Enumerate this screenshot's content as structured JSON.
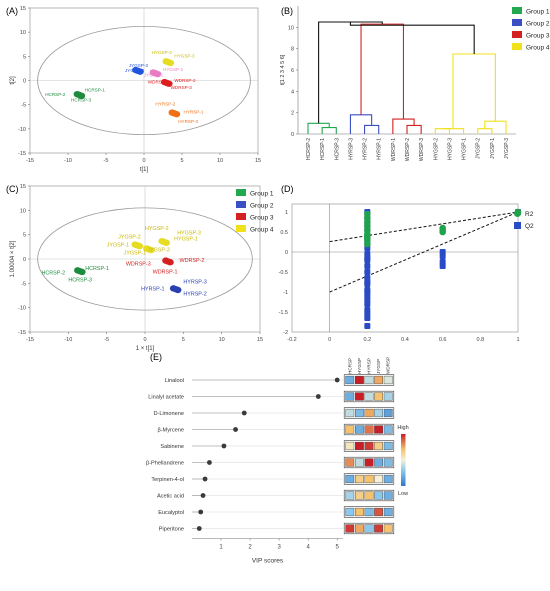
{
  "panels": {
    "A": {
      "label": "(A)",
      "xlabel": "t[1]",
      "ylabel": "t[2]"
    },
    "B": {
      "label": "(B)",
      "ylabel": "t[1 2 3 4 5 6]"
    },
    "C": {
      "label": "(C)",
      "xlabel": "1 × t[1]",
      "ylabel": "1.00004 × t[2]"
    },
    "D": {
      "label": "(D)"
    },
    "E": {
      "label": "(E)",
      "xlabel": "VIP scores"
    }
  },
  "legend_groups": [
    {
      "name": "Group 1",
      "color": "#22a94f"
    },
    {
      "name": "Group 2",
      "color": "#3b4fc4"
    },
    {
      "name": "Group 3",
      "color": "#d42020"
    },
    {
      "name": "Group 4",
      "color": "#f0e11b"
    }
  ],
  "heat_legend": {
    "high": "High",
    "low": "Low"
  },
  "chart_data": [
    {
      "id": "A",
      "type": "scatter",
      "xlabel": "t[1]",
      "ylabel": "t[2]",
      "xlim": [
        -15,
        15
      ],
      "ylim": [
        -15,
        15
      ],
      "xticks": [
        -15,
        -10,
        -5,
        0,
        5,
        10,
        15
      ],
      "yticks": [
        -15,
        -10,
        -5,
        0,
        5,
        10,
        15
      ],
      "ellipse": {
        "rx": 14,
        "ry": 11.2
      },
      "clusters": [
        {
          "name": "HCRSP",
          "color": "#1e8c3e",
          "x": -8.5,
          "y": -3.0
        },
        {
          "name": "JYGSP",
          "color": "#2255dd",
          "x": -0.8,
          "y": 2.0
        },
        {
          "name": "HYGSP",
          "color": "#e87cc4",
          "x": 1.5,
          "y": 1.5
        },
        {
          "name": "HYGSP",
          "color": "#e6dc22",
          "x": 3.2,
          "y": 3.8
        },
        {
          "name": "WDRSP",
          "color": "#e01d1d",
          "x": 3.0,
          "y": -0.5
        },
        {
          "name": "HYRSP",
          "color": "#f07018",
          "x": 4.0,
          "y": -6.8
        }
      ],
      "point_labels": [
        {
          "text": "HCRSP-2",
          "x": -13,
          "y": -3.2,
          "color": "#1e8c3e"
        },
        {
          "text": "HCRSP-1",
          "x": -7.8,
          "y": -2.3,
          "color": "#1e8c3e"
        },
        {
          "text": "HCRSP-3",
          "x": -9.6,
          "y": -4.3,
          "color": "#1e8c3e"
        },
        {
          "text": "JYGSP-3",
          "x": -2.0,
          "y": 2.8,
          "color": "#2255dd"
        },
        {
          "text": "JYGSP-2",
          "x": -2.5,
          "y": 1.8,
          "color": "#2255dd"
        },
        {
          "text": "JYGSP-1",
          "x": 0.0,
          "y": 0.8,
          "color": "#e87cc4"
        },
        {
          "text": "HYGSP-1",
          "x": 2.5,
          "y": 2.0,
          "color": "#e87cc4"
        },
        {
          "text": "HYGSP-2",
          "x": 1.0,
          "y": 5.5,
          "color": "#c9b800"
        },
        {
          "text": "HYGSP-3",
          "x": 4.0,
          "y": 4.8,
          "color": "#c9b800"
        },
        {
          "text": "WDRSP-1",
          "x": 0.5,
          "y": -0.6,
          "color": "#e01d1d"
        },
        {
          "text": "WDRSP-2",
          "x": 4.0,
          "y": -0.3,
          "color": "#e01d1d"
        },
        {
          "text": "WDRSP-3",
          "x": 3.5,
          "y": -1.8,
          "color": "#e01d1d"
        },
        {
          "text": "HYRSP-2",
          "x": 1.5,
          "y": -5.2,
          "color": "#f07018"
        },
        {
          "text": "HYRSP-1",
          "x": 5.2,
          "y": -6.8,
          "color": "#f07018"
        },
        {
          "text": "HYRSP-3",
          "x": 4.5,
          "y": -8.8,
          "color": "#f07018"
        }
      ]
    },
    {
      "id": "B",
      "type": "dendrogram",
      "ylabel": "t[1 2 3 4 5 6]",
      "ylim": [
        0,
        12
      ],
      "yticks": [
        0,
        2,
        4,
        6,
        8,
        10
      ],
      "leaves": [
        "HCRSP-2",
        "HCRSP-1",
        "HCRSP-3",
        "HYRSP-3",
        "HYRSP-2",
        "HYRSP-1",
        "WDRSP-1",
        "WDRSP-2",
        "WDRSP-3",
        "HYGSP-2",
        "HYGSP-3",
        "HYGSP-1",
        "JYGSP-2",
        "JYGSP-1",
        "JYGSP-3"
      ]
    },
    {
      "id": "C",
      "type": "scatter",
      "xlabel": "1 × t[1]",
      "ylabel": "1.00004 × t[2]",
      "xlim": [
        -15,
        15
      ],
      "ylim": [
        -15,
        15
      ],
      "xticks": [
        -15,
        -10,
        -5,
        0,
        5,
        10,
        15
      ],
      "yticks": [
        -15,
        -10,
        -5,
        0,
        5,
        10,
        15
      ],
      "ellipse": {
        "rx": 14,
        "ry": 10.5
      },
      "clusters": [
        {
          "name": "HCRSP",
          "color": "#1e8c3e",
          "x": -8.5,
          "y": -2.5
        },
        {
          "name": "JYGSP",
          "color": "#e6dc22",
          "x": -1.0,
          "y": 2.8
        },
        {
          "name": "JYGSP",
          "color": "#e6dc22",
          "x": 0.5,
          "y": 2.0
        },
        {
          "name": "HYGSP",
          "color": "#e6dc22",
          "x": 2.5,
          "y": 3.5
        },
        {
          "name": "WDRSP",
          "color": "#d42020",
          "x": 3.0,
          "y": -0.5
        },
        {
          "name": "HYRSP",
          "color": "#2a3fb0",
          "x": 4.0,
          "y": -6.2
        }
      ],
      "point_labels": [
        {
          "text": "HCRSP-2",
          "x": -13.5,
          "y": -3.2,
          "color": "#1e8c3e"
        },
        {
          "text": "HCRSP-1",
          "x": -7.8,
          "y": -2.3,
          "color": "#1e8c3e"
        },
        {
          "text": "HCRSP-3",
          "x": -10.0,
          "y": -4.6,
          "color": "#1e8c3e"
        },
        {
          "text": "HYGSP-2",
          "x": 0.0,
          "y": 6.0,
          "color": "#c9b800"
        },
        {
          "text": "HYGSP-3",
          "x": 4.2,
          "y": 5.0,
          "color": "#c9b800"
        },
        {
          "text": "HYGSP-1",
          "x": 3.8,
          "y": 3.8,
          "color": "#c9b800"
        },
        {
          "text": "JYGSP-2",
          "x": -3.5,
          "y": 4.2,
          "color": "#c9b800"
        },
        {
          "text": "JYGSP-1",
          "x": -5.0,
          "y": 2.6,
          "color": "#c9b800"
        },
        {
          "text": "JYGSP-3",
          "x": 0.3,
          "y": 1.5,
          "color": "#c9b800"
        },
        {
          "text": "JYGSP-1",
          "x": -2.8,
          "y": 0.9,
          "color": "#c9b800"
        },
        {
          "text": "WDRSP-3",
          "x": -2.5,
          "y": -1.3,
          "color": "#d42020"
        },
        {
          "text": "WDRSP-2",
          "x": 4.5,
          "y": -0.6,
          "color": "#d42020"
        },
        {
          "text": "WDRSP-1",
          "x": 1.0,
          "y": -3.0,
          "color": "#d42020"
        },
        {
          "text": "HYRSP-3",
          "x": 5.0,
          "y": -5.0,
          "color": "#2a3fb0"
        },
        {
          "text": "HYRSP-1",
          "x": -0.5,
          "y": -6.5,
          "color": "#2a3fb0"
        },
        {
          "text": "HYRSP-2",
          "x": 5.0,
          "y": -7.5,
          "color": "#2a3fb0"
        }
      ]
    },
    {
      "id": "D",
      "type": "scatter",
      "xlim": [
        -0.2,
        1.0
      ],
      "ylim": [
        -2.0,
        1.2
      ],
      "xticks": [
        -0.2,
        0,
        0.2,
        0.4,
        0.6,
        0.8,
        1
      ],
      "yticks": [
        -2,
        -1.5,
        -1,
        -0.5,
        0,
        0.5,
        1
      ],
      "series": [
        {
          "name": "R2",
          "color": "#1fa34a",
          "shape": "circle",
          "x": [
            0.2,
            0.2,
            0.2,
            0.2,
            0.2,
            0.2,
            0.2,
            0.2,
            0.2,
            0.2,
            0.6,
            0.6,
            0.6,
            1.0
          ],
          "y": [
            0.95,
            0.85,
            0.75,
            0.65,
            0.55,
            0.45,
            0.35,
            0.3,
            0.2,
            0.4,
            0.6,
            0.55,
            0.5,
            1.0
          ],
          "trend": {
            "x": [
              0,
              1
            ],
            "y": [
              0.26,
              1.0
            ]
          }
        },
        {
          "name": "Q2",
          "color": "#2a4bc6",
          "shape": "square",
          "x": [
            0.2,
            0.2,
            0.2,
            0.2,
            0.2,
            0.2,
            0.2,
            0.2,
            0.2,
            0.2,
            0.2,
            0.2,
            0.2,
            0.2,
            0.2,
            0.2,
            0.2,
            0.2,
            0.2,
            0.2,
            0.2,
            0.2,
            0.2,
            0.2,
            0.6,
            0.6,
            0.6,
            0.6,
            1.0
          ],
          "y": [
            1.0,
            0.85,
            0.7,
            0.55,
            0.4,
            0.25,
            0.1,
            -0.05,
            -0.2,
            -0.35,
            -0.5,
            -0.65,
            -0.8,
            -0.95,
            -1.1,
            -1.2,
            -1.3,
            -1.45,
            -1.55,
            -1.65,
            -1.85,
            -0.15,
            -0.75,
            -1.0,
            0.0,
            -0.1,
            -0.25,
            -0.35,
            1.0
          ],
          "trend": {
            "x": [
              0,
              1
            ],
            "y": [
              -1.0,
              1.0
            ]
          }
        }
      ]
    },
    {
      "id": "E",
      "type": "scatter",
      "xlabel": "VIP scores",
      "xlim": [
        0,
        5.2
      ],
      "xticks": [
        1,
        2,
        3,
        4,
        5
      ],
      "categories": [
        "Linalool",
        "Linalyl acetate",
        "D-Limonene",
        "β-Myrcene",
        "Sabinene",
        "β-Phellandrene",
        "Terpinen-4-ol",
        "Acetic acid",
        "Eucalyptol",
        "Piperitone"
      ],
      "values": [
        5.0,
        4.35,
        1.8,
        1.5,
        1.1,
        0.6,
        0.45,
        0.38,
        0.3,
        0.25
      ],
      "heatmap_columns": [
        "HCRSP",
        "HYGSP",
        "HYRSP",
        "JYGSP",
        "WDRSP"
      ],
      "heatmap": [
        [
          -0.6,
          1.0,
          -0.2,
          0.5,
          -0.1
        ],
        [
          -0.6,
          1.0,
          -0.2,
          0.4,
          -0.3
        ],
        [
          -0.2,
          -0.5,
          0.5,
          -0.3,
          -0.7
        ],
        [
          0.4,
          -0.6,
          0.7,
          1.0,
          -0.5
        ],
        [
          0.1,
          1.0,
          0.9,
          0.3,
          -0.5
        ],
        [
          0.6,
          -0.2,
          1.0,
          -0.6,
          -0.5
        ],
        [
          -0.6,
          0.3,
          0.4,
          0.0,
          -0.6
        ],
        [
          -0.3,
          0.3,
          0.4,
          -0.4,
          -0.6
        ],
        [
          -0.4,
          0.4,
          -0.5,
          0.8,
          -0.6
        ],
        [
          0.9,
          0.5,
          -0.4,
          0.9,
          0.4
        ]
      ]
    }
  ]
}
